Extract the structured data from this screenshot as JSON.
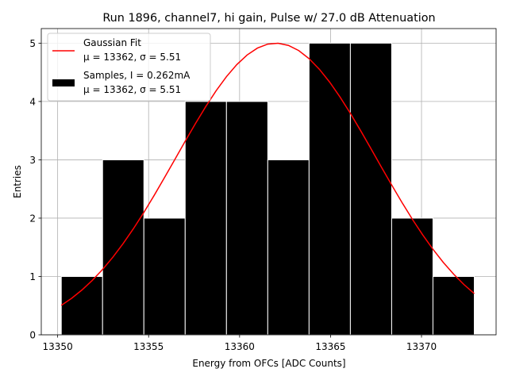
{
  "chart_data": {
    "type": "bar",
    "title": "Run 1896, channel7, hi gain, Pulse w/ 27.0 dB Attenuation",
    "xlabel": "Energy from OFCs [ADC Counts]",
    "ylabel": "Entries",
    "xlim": [
      13349.1,
      13374.1
    ],
    "ylim": [
      0,
      5.25
    ],
    "xticks": [
      13350,
      13355,
      13360,
      13365,
      13370
    ],
    "xtick_labels": [
      "13350",
      "13355",
      "13360",
      "13365",
      "13370"
    ],
    "yticks": [
      0,
      1,
      2,
      3,
      4,
      5
    ],
    "ytick_labels": [
      "0",
      "1",
      "2",
      "3",
      "4",
      "5"
    ],
    "grid": true,
    "legend_position": "top-left",
    "colors": {
      "fit": "#ff0000",
      "bars": "#000000",
      "bar_edge": "#ffffff"
    },
    "histogram": {
      "name": "Samples, I = 0.262mA",
      "name_line2": "μ = 13362, σ = 5.51",
      "bin_edges": [
        13350.2,
        13352.47,
        13354.74,
        13357.01,
        13359.28,
        13361.55,
        13363.82,
        13366.09,
        13368.36,
        13370.63,
        13372.9
      ],
      "counts": [
        1,
        3,
        2,
        4,
        4,
        3,
        5,
        5,
        2,
        1
      ]
    },
    "fit": {
      "name": "Gaussian Fit",
      "name_line2": "μ = 13362, σ = 5.51",
      "mu": 13362,
      "sigma": 5.51,
      "amplitude": 5,
      "x_range": [
        13350.2,
        13372.9
      ]
    }
  }
}
